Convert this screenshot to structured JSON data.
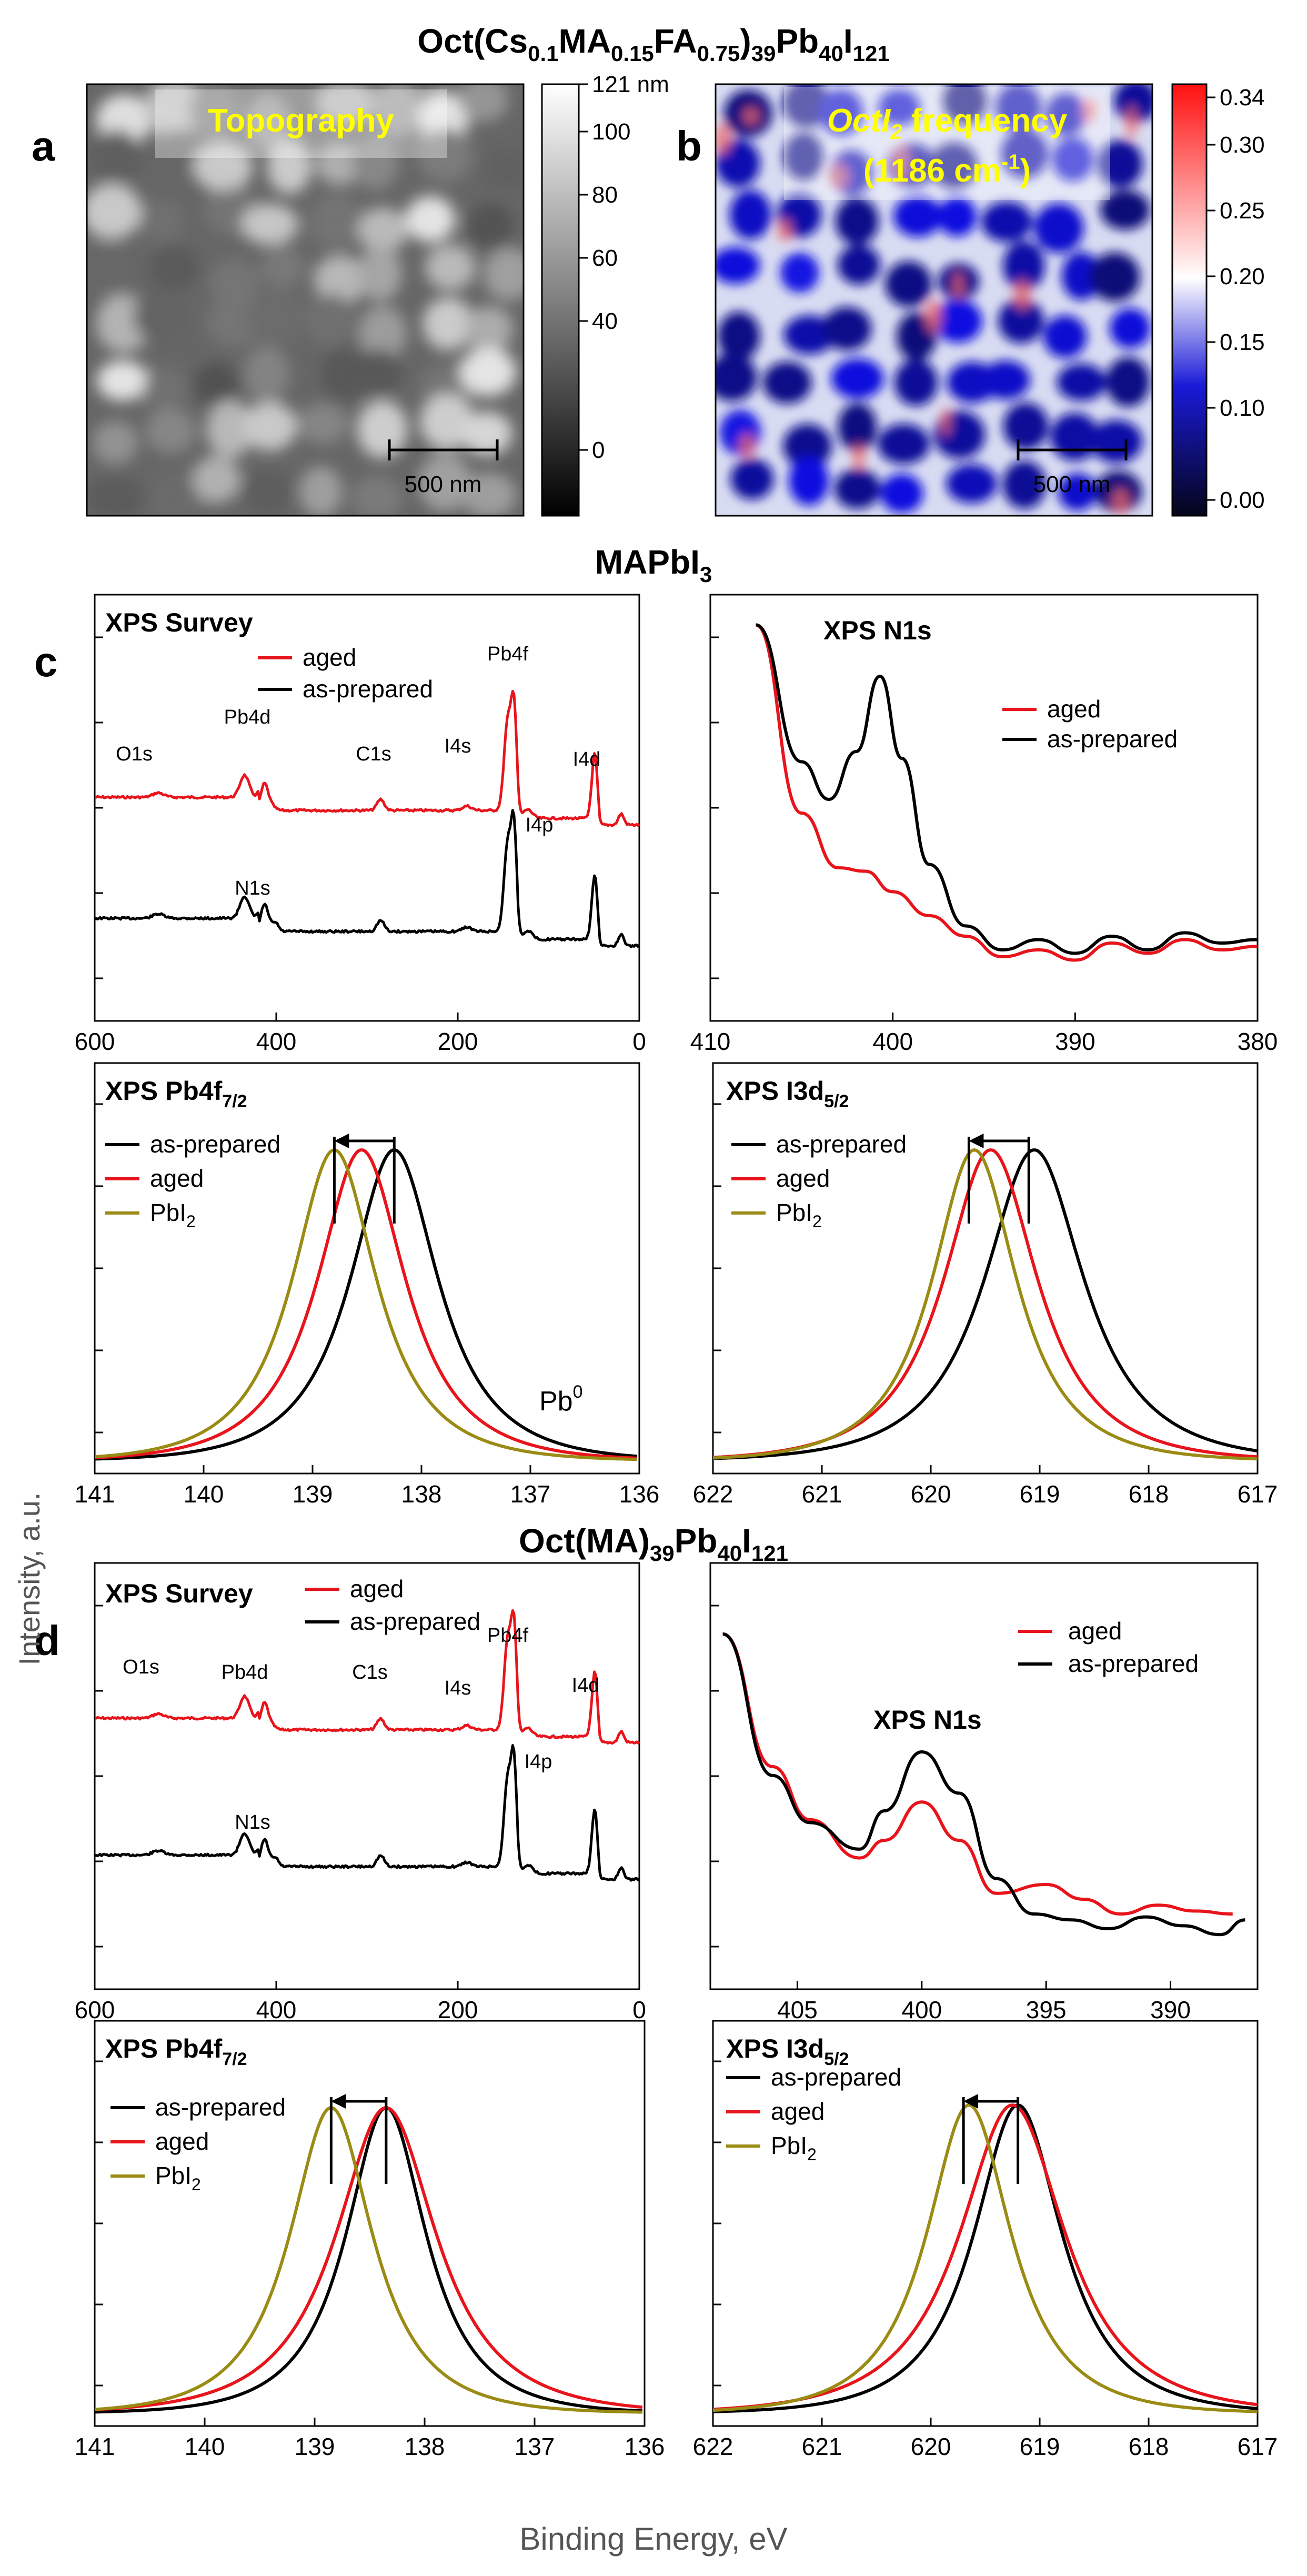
{
  "figure": {
    "title_top": [
      "Oct(Cs",
      "0.1",
      "MA",
      "0.15",
      "FA",
      "0.75",
      ")",
      "39",
      "Pb",
      "40",
      "I",
      "121"
    ],
    "title_c": [
      "MAPbI",
      "3"
    ],
    "title_d": [
      "Oct(MA)",
      "39",
      "Pb",
      "40",
      "I",
      "121"
    ],
    "panel_letters": [
      "a",
      "b",
      "c",
      "d"
    ],
    "ylabel": "Intensity, a.u.",
    "xlabel": "Binding Energy, eV",
    "colors": {
      "aged": "#e8141c",
      "as_prepared": "#000000",
      "pbi2": "#9a8b14"
    }
  },
  "map_a": {
    "label": "Topography",
    "scalebar": "500 nm",
    "colorbar_ticks": [
      "121 nm",
      "100",
      "80",
      "60",
      "40",
      "0"
    ]
  },
  "map_b": {
    "label_line1": [
      "OctI",
      "2",
      " frequency"
    ],
    "label_line2": [
      "(1186 cm",
      "-1",
      ")"
    ],
    "scalebar": "500 nm",
    "colorbar_ticks": [
      "0.34",
      "0.30",
      "0.25",
      "0.20",
      "0.15",
      "0.10",
      "0.00"
    ]
  },
  "chart_data": [
    {
      "id": "c-survey",
      "type": "line",
      "title": "XPS Survey",
      "xlim": [
        600,
        0
      ],
      "xticks": [
        "600",
        "400",
        "200",
        "0"
      ],
      "legend": [
        "aged",
        "as-prepared"
      ],
      "peak_labels": [
        "O1s",
        "Pb4d",
        "C1s",
        "I4s",
        "Pb4f",
        "I4p",
        "I4d",
        "N1s"
      ],
      "series": [
        {
          "name": "aged"
        },
        {
          "name": "as-prepared"
        }
      ]
    },
    {
      "id": "c-n1s",
      "type": "line",
      "title": "XPS  N1s",
      "xlim": [
        410,
        380
      ],
      "xticks": [
        "410",
        "400",
        "390",
        "380"
      ],
      "legend": [
        "aged",
        "as-prepared"
      ],
      "series": [
        {
          "name": "aged",
          "x": [
            407.5,
            405,
            403,
            401.5,
            400,
            398,
            396,
            394,
            392,
            390,
            388,
            386,
            384,
            382,
            380
          ],
          "y": [
            0.95,
            0.4,
            0.24,
            0.23,
            0.17,
            0.1,
            0.04,
            -0.02,
            0.0,
            -0.03,
            0.02,
            -0.01,
            0.03,
            0.0,
            0.01
          ]
        },
        {
          "name": "as-prepared",
          "x": [
            407.5,
            405,
            403.5,
            402,
            400.7,
            399.5,
            398,
            396,
            394,
            392,
            390,
            388,
            386,
            384,
            382,
            380
          ],
          "y": [
            0.95,
            0.55,
            0.44,
            0.58,
            0.8,
            0.56,
            0.25,
            0.07,
            0.0,
            0.03,
            -0.01,
            0.04,
            0.0,
            0.05,
            0.02,
            0.03
          ]
        }
      ]
    },
    {
      "id": "c-pb4f",
      "type": "line",
      "title": [
        "XPS Pb4f",
        "7/2"
      ],
      "xlim": [
        141,
        136
      ],
      "xticks": [
        "141",
        "140",
        "139",
        "138",
        "137",
        "136"
      ],
      "legend": [
        "as-prepared",
        "aged",
        "PbI",
        "2"
      ],
      "annotation": [
        "Pb",
        "0"
      ],
      "series": [
        {
          "name": "as-prepared",
          "center": 138.25,
          "width": 0.75
        },
        {
          "name": "aged",
          "center": 138.55,
          "width": 0.75
        },
        {
          "name": "PbI2",
          "center": 138.8,
          "width": 0.72
        }
      ]
    },
    {
      "id": "c-i3d",
      "type": "line",
      "title": [
        "XPS I3d",
        "5/2"
      ],
      "xlim": [
        622,
        617
      ],
      "xticks": [
        "622",
        "621",
        "620",
        "619",
        "618",
        "617"
      ],
      "legend": [
        "as-prepared",
        "aged",
        "PbI",
        "2"
      ],
      "series": [
        {
          "name": "as-prepared",
          "center": 619.05,
          "width": 0.85
        },
        {
          "name": "aged",
          "center": 619.45,
          "width": 0.8
        },
        {
          "name": "PbI2",
          "center": 619.6,
          "width": 0.72
        }
      ]
    },
    {
      "id": "d-survey",
      "type": "line",
      "title": "XPS Survey",
      "xlim": [
        600,
        0
      ],
      "xticks": [
        "600",
        "400",
        "200",
        "0"
      ],
      "legend": [
        "aged",
        "as-prepared"
      ],
      "peak_labels": [
        "O1s",
        "Pb4d",
        "C1s",
        "I4s",
        "Pb4f",
        "I4p",
        "I4d",
        "N1s"
      ],
      "series": [
        {
          "name": "aged"
        },
        {
          "name": "as-prepared"
        }
      ]
    },
    {
      "id": "d-n1s",
      "type": "line",
      "title": "XPS  N1s",
      "xlim": [
        408.5,
        386.5
      ],
      "xticks": [
        "405",
        "400",
        "395",
        "390"
      ],
      "legend": [
        "aged",
        "as-prepared"
      ],
      "series": [
        {
          "name": "aged",
          "x": [
            408,
            406,
            404.5,
            402.5,
            401.5,
            400,
            398.5,
            397,
            395,
            393.5,
            392,
            390.5,
            389,
            387.5
          ],
          "y": [
            1.0,
            0.55,
            0.37,
            0.24,
            0.3,
            0.43,
            0.3,
            0.12,
            0.15,
            0.1,
            0.05,
            0.08,
            0.06,
            0.05
          ]
        },
        {
          "name": "as-prepared",
          "x": [
            408,
            406,
            404.5,
            402.5,
            401.5,
            400,
            398.5,
            397,
            395.5,
            394,
            392.5,
            391,
            389.5,
            388,
            387
          ],
          "y": [
            1.0,
            0.52,
            0.36,
            0.27,
            0.4,
            0.6,
            0.46,
            0.17,
            0.05,
            0.03,
            0.0,
            0.04,
            0.01,
            -0.02,
            0.03
          ]
        }
      ]
    },
    {
      "id": "d-pb4f",
      "type": "line",
      "title": [
        "XPS Pb4f",
        "7/2"
      ],
      "xlim": [
        141,
        136
      ],
      "xticks": [
        "141",
        "140",
        "139",
        "138",
        "137",
        "136"
      ],
      "legend": [
        "as-prepared",
        "aged",
        "PbI",
        "2"
      ],
      "series": [
        {
          "name": "as-prepared",
          "center": 138.35,
          "width": 0.68
        },
        {
          "name": "aged",
          "center": 138.35,
          "width": 0.85
        },
        {
          "name": "PbI2",
          "center": 138.85,
          "width": 0.7
        }
      ]
    },
    {
      "id": "d-i3d",
      "type": "line",
      "title": [
        "XPS I3d",
        "5/2"
      ],
      "xlim": [
        622,
        617
      ],
      "xticks": [
        "622",
        "621",
        "620",
        "619",
        "618",
        "617"
      ],
      "legend": [
        "as-prepared",
        "aged",
        "PbI",
        "2"
      ],
      "series": [
        {
          "name": "as-prepared",
          "center": 619.2,
          "width": 0.75
        },
        {
          "name": "aged",
          "center": 619.25,
          "width": 0.9
        },
        {
          "name": "PbI2",
          "center": 619.65,
          "width": 0.72
        }
      ]
    }
  ]
}
